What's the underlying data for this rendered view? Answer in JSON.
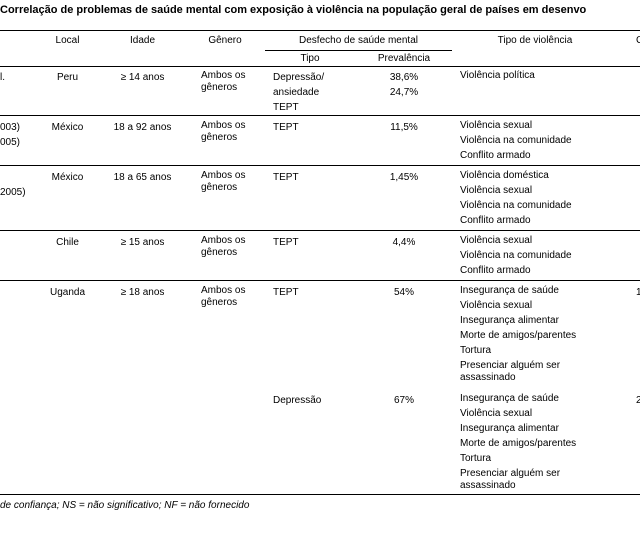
{
  "title": "Correlação de problemas de saúde mental com exposição à violência na população geral de países em desenvo",
  "header": {
    "local": "Local",
    "idade": "Idade",
    "genero": "Gênero",
    "desfecho": "Desfecho de saúde mental",
    "tipo": "Tipo",
    "prevalencia": "Prevalência",
    "violencia": "Tipo de violência",
    "cut": "C"
  },
  "rows": [
    {
      "ref": [
        "l."
      ],
      "local": "Peru",
      "idade": "≥ 14 anos",
      "genero": "Ambos os gêneros",
      "outcomes": [
        {
          "tipo": [
            "Depressão/",
            "ansiedade",
            "TEPT"
          ],
          "prevalencia": [
            "38,6%",
            "24,7%"
          ],
          "violencia": [
            "Violência política"
          ]
        }
      ]
    },
    {
      "ref": [
        "003)",
        "005)"
      ],
      "local": "México",
      "idade": "18 a 92 anos",
      "genero": "Ambos os gêneros",
      "outcomes": [
        {
          "tipo": [
            "TEPT"
          ],
          "prevalencia": [
            "11,5%"
          ],
          "violencia": [
            "Violência sexual",
            "Violência na comunidade",
            "Conflito armado"
          ]
        }
      ]
    },
    {
      "ref": [
        "2005)"
      ],
      "local": "México",
      "idade": "18 a 65 anos",
      "genero": "Ambos os gêneros",
      "outcomes": [
        {
          "tipo": [
            "TEPT"
          ],
          "prevalencia": [
            "1,45%"
          ],
          "violencia": [
            "Violência doméstica",
            "Violência sexual",
            "Violência na comunidade",
            "Conflito armado"
          ]
        }
      ]
    },
    {
      "local": "Chile",
      "idade": "≥ 15 anos",
      "genero": "Ambos os gêneros",
      "outcomes": [
        {
          "tipo": [
            "TEPT"
          ],
          "prevalencia": [
            "4,4%"
          ],
          "violencia": [
            "Violência sexual",
            "Violência na comunidade",
            "Conflito armado"
          ]
        }
      ]
    },
    {
      "local": "Uganda",
      "idade": "≥ 18 anos",
      "genero": "Ambos os gêneros",
      "outcomes": [
        {
          "tipo": [
            "TEPT"
          ],
          "prevalencia": [
            "54%"
          ],
          "violencia": [
            "Insegurança de saúde",
            "Violência sexual",
            "Insegurança alimentar",
            "Morte de amigos/parentes",
            "Tortura",
            "Presenciar alguém ser assassinado"
          ],
          "cut": "1"
        },
        {
          "tipo": [
            "Depressão"
          ],
          "prevalencia": [
            "67%"
          ],
          "violencia": [
            "Insegurança de saúde",
            "Violência sexual",
            "Insegurança alimentar",
            "Morte de amigos/parentes",
            "Tortura",
            "Presenciar alguém ser assassinado"
          ],
          "cut": "2"
        }
      ]
    }
  ],
  "footnote": "de confiança; NS = não significativo; NF = não fornecido"
}
